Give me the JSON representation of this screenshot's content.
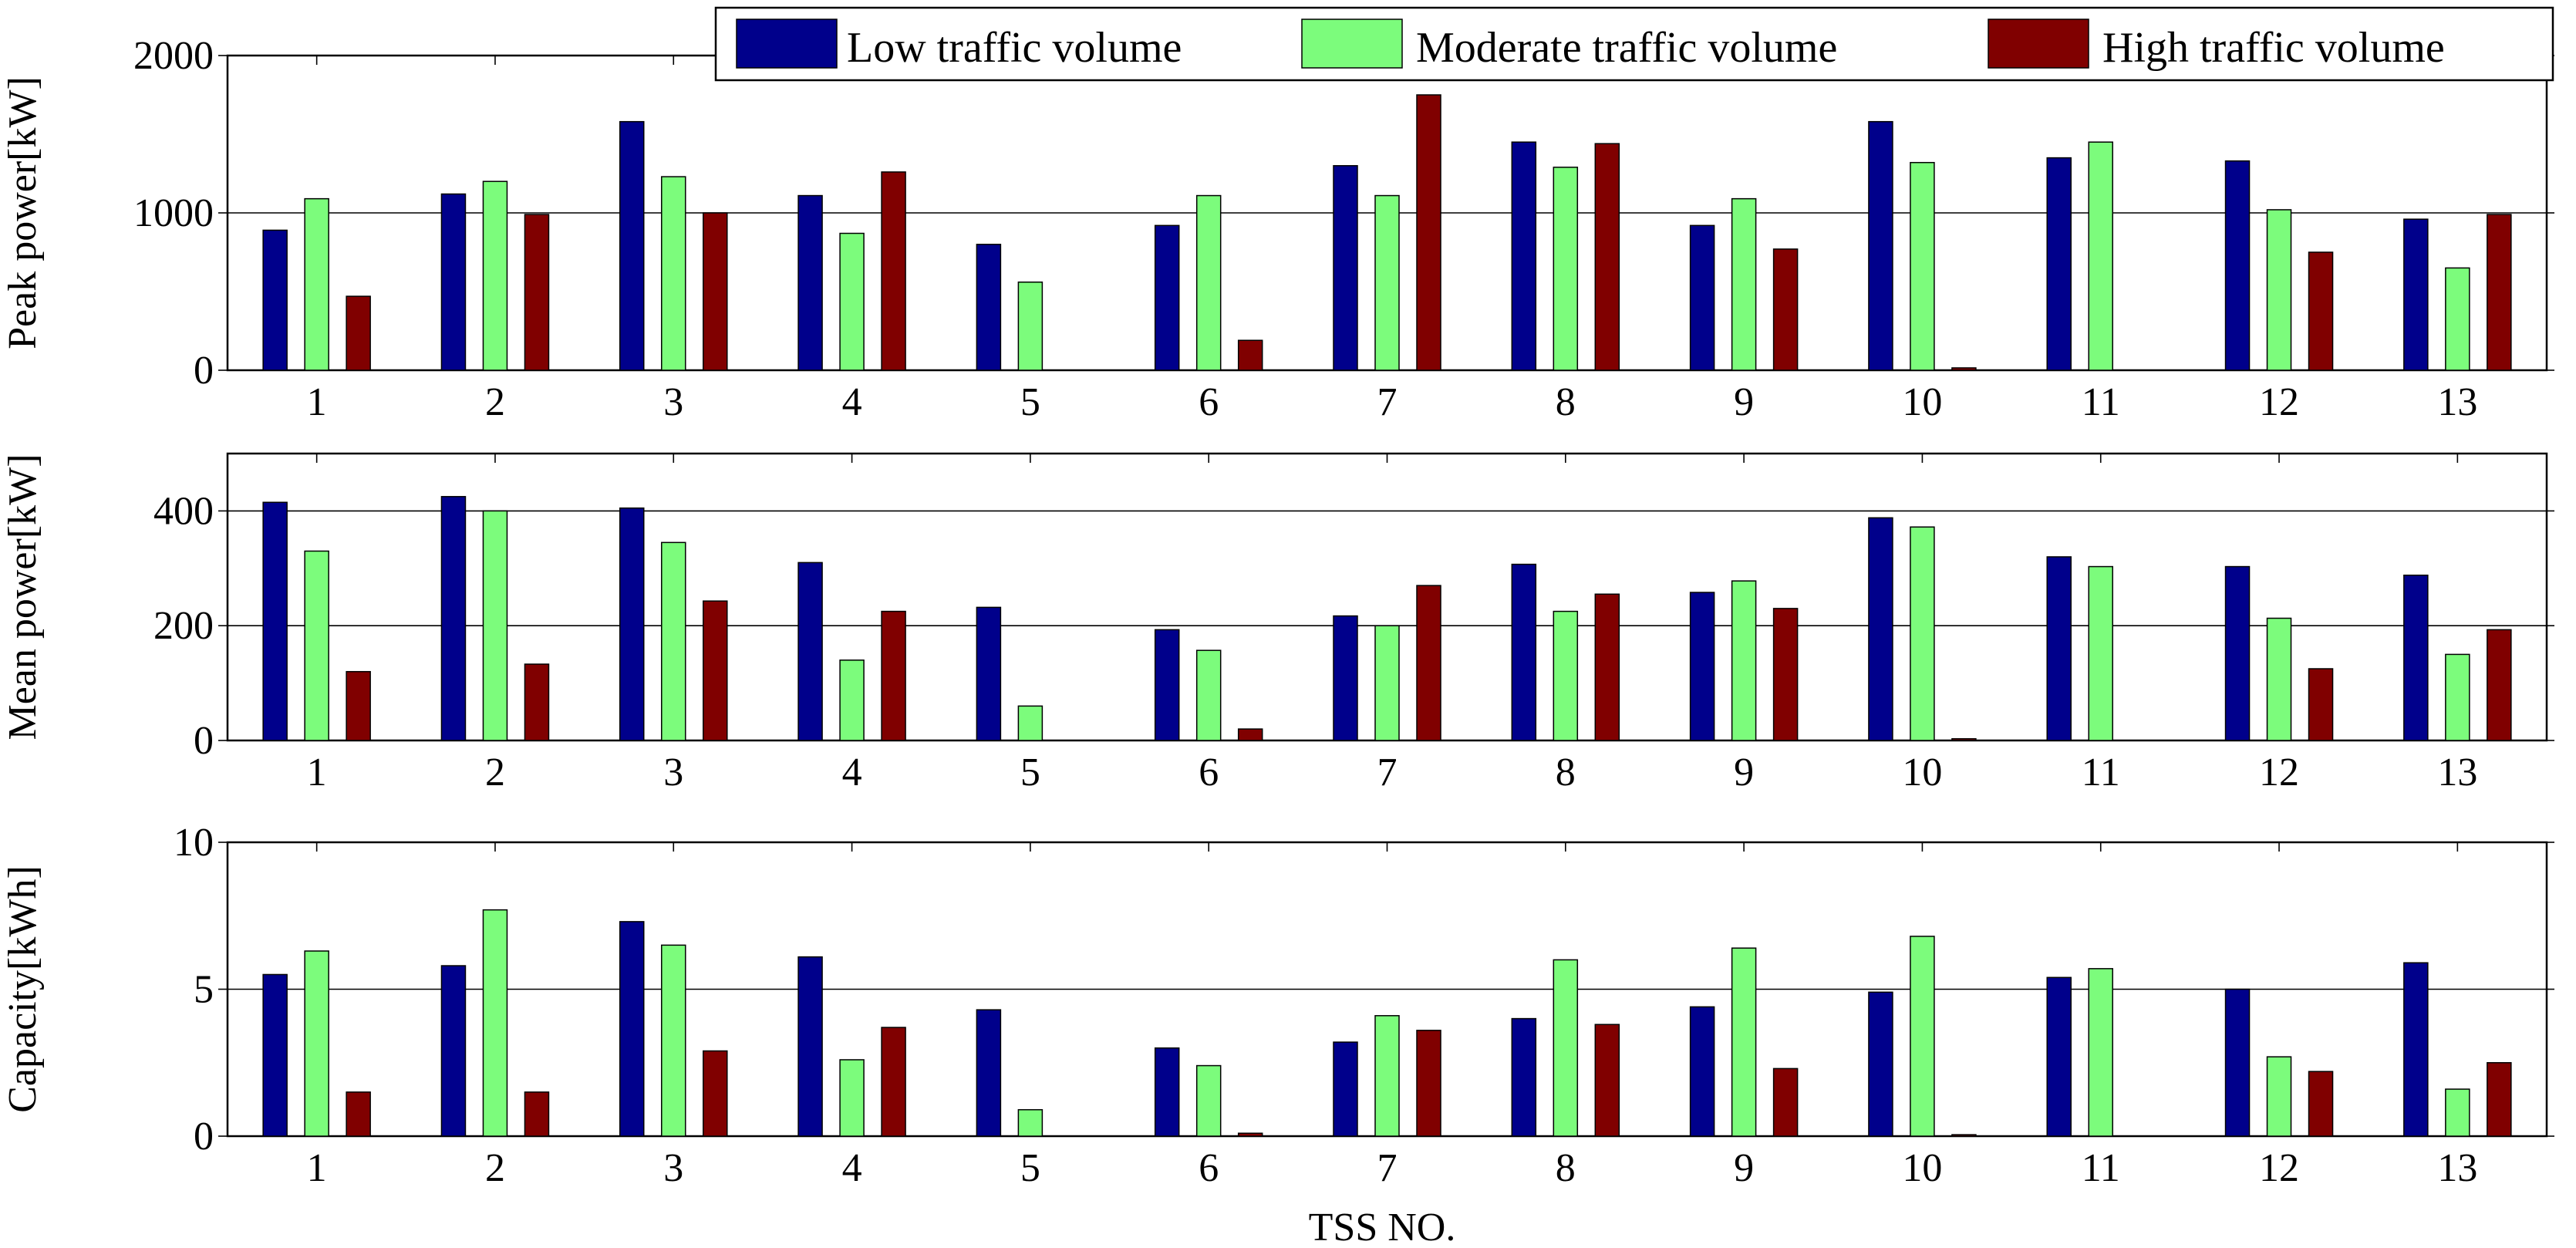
{
  "colors": {
    "low": "#00008b",
    "moderate": "#7cfc7c",
    "high": "#800000"
  },
  "chart_data": [
    {
      "type": "bar",
      "panel": "peak",
      "ylabel": "Peak power[kW]",
      "xlabel": "",
      "ylim": [
        0,
        2000
      ],
      "yticks": [
        0,
        1000,
        2000
      ],
      "categories": [
        "1",
        "2",
        "3",
        "4",
        "5",
        "6",
        "7",
        "8",
        "9",
        "10",
        "11",
        "12",
        "13"
      ],
      "series": [
        {
          "name": "Low traffic volume",
          "values": [
            890,
            1120,
            1580,
            1110,
            800,
            920,
            1300,
            1450,
            920,
            1580,
            1350,
            1330,
            960
          ]
        },
        {
          "name": "Moderate traffic volume",
          "values": [
            1090,
            1200,
            1230,
            870,
            560,
            1110,
            1110,
            1290,
            1090,
            1320,
            1450,
            1020,
            650
          ]
        },
        {
          "name": "High traffic volume",
          "values": [
            470,
            990,
            1000,
            1260,
            0,
            190,
            1750,
            1440,
            770,
            15,
            0,
            750,
            990
          ]
        }
      ]
    },
    {
      "type": "bar",
      "panel": "mean",
      "ylabel": "Mean power[kW]",
      "xlabel": "",
      "ylim": [
        0,
        500
      ],
      "yticks": [
        0,
        200,
        400
      ],
      "categories": [
        "1",
        "2",
        "3",
        "4",
        "5",
        "6",
        "7",
        "8",
        "9",
        "10",
        "11",
        "12",
        "13"
      ],
      "series": [
        {
          "name": "Low traffic volume",
          "values": [
            415,
            425,
            405,
            310,
            232,
            193,
            217,
            307,
            258,
            388,
            320,
            303,
            288
          ]
        },
        {
          "name": "Moderate traffic volume",
          "values": [
            330,
            400,
            345,
            140,
            60,
            157,
            200,
            225,
            278,
            372,
            303,
            213,
            150
          ]
        },
        {
          "name": "High traffic volume",
          "values": [
            120,
            133,
            243,
            225,
            0,
            20,
            270,
            255,
            230,
            3,
            0,
            125,
            193
          ]
        }
      ]
    },
    {
      "type": "bar",
      "panel": "capacity",
      "ylabel": "Capacity[kWh]",
      "xlabel": "TSS NO.",
      "ylim": [
        0,
        10
      ],
      "yticks": [
        0,
        5,
        10
      ],
      "categories": [
        "1",
        "2",
        "3",
        "4",
        "5",
        "6",
        "7",
        "8",
        "9",
        "10",
        "11",
        "12",
        "13"
      ],
      "series": [
        {
          "name": "Low traffic volume",
          "values": [
            5.5,
            5.8,
            7.3,
            6.1,
            4.3,
            3.0,
            3.2,
            4.0,
            4.4,
            4.9,
            5.4,
            5.0,
            5.9
          ]
        },
        {
          "name": "Moderate traffic volume",
          "values": [
            6.3,
            7.7,
            6.5,
            2.6,
            0.9,
            2.4,
            4.1,
            6.0,
            6.4,
            6.8,
            5.7,
            2.7,
            1.6
          ]
        },
        {
          "name": "High traffic volume",
          "values": [
            1.5,
            1.5,
            2.9,
            3.7,
            0,
            0.1,
            3.6,
            3.8,
            2.3,
            0.05,
            0,
            2.2,
            2.5
          ]
        }
      ]
    }
  ],
  "legend": {
    "placement": "top-right",
    "items": [
      "Low traffic volume",
      "Moderate traffic volume",
      "High traffic volume"
    ]
  }
}
